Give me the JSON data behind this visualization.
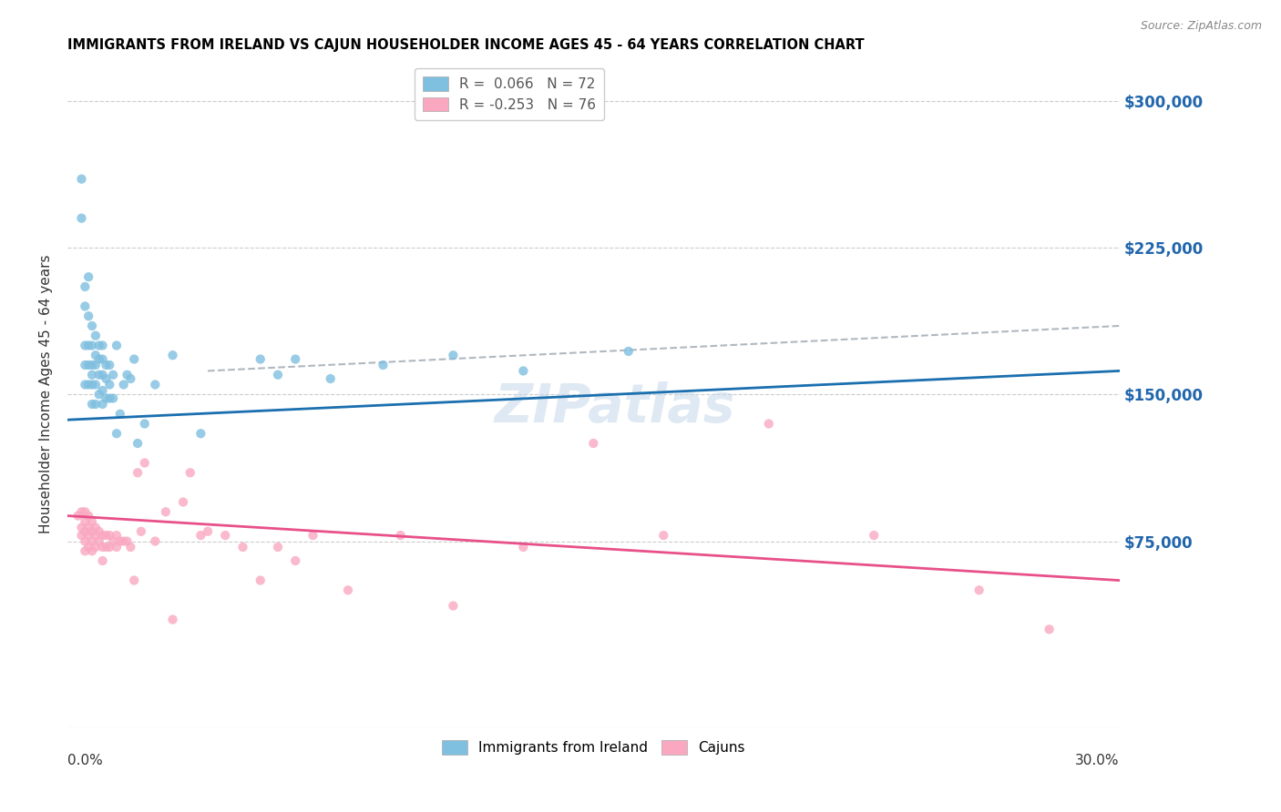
{
  "title": "IMMIGRANTS FROM IRELAND VS CAJUN HOUSEHOLDER INCOME AGES 45 - 64 YEARS CORRELATION CHART",
  "source": "Source: ZipAtlas.com",
  "ylabel": "Householder Income Ages 45 - 64 years",
  "ytick_values": [
    75000,
    150000,
    225000,
    300000
  ],
  "ylim": [
    -20000,
    320000
  ],
  "xlim": [
    0.0,
    0.3
  ],
  "ireland_color": "#7fbfdf",
  "cajun_color": "#f9a8c0",
  "ireland_line_color": "#1a6faf",
  "cajun_line_color": "#e8508a",
  "dash_line_color": "#b0b8c0",
  "watermark": "ZIPatlas",
  "ireland_points_x": [
    0.004,
    0.004,
    0.005,
    0.005,
    0.005,
    0.005,
    0.005,
    0.006,
    0.006,
    0.006,
    0.006,
    0.006,
    0.007,
    0.007,
    0.007,
    0.007,
    0.007,
    0.007,
    0.008,
    0.008,
    0.008,
    0.008,
    0.008,
    0.009,
    0.009,
    0.009,
    0.009,
    0.01,
    0.01,
    0.01,
    0.01,
    0.01,
    0.011,
    0.011,
    0.011,
    0.012,
    0.012,
    0.012,
    0.013,
    0.013,
    0.014,
    0.014,
    0.015,
    0.016,
    0.017,
    0.018,
    0.019,
    0.02,
    0.022,
    0.025,
    0.03,
    0.038,
    0.055,
    0.06,
    0.065,
    0.075,
    0.09,
    0.11,
    0.13,
    0.16
  ],
  "ireland_points_y": [
    260000,
    240000,
    205000,
    195000,
    175000,
    165000,
    155000,
    210000,
    190000,
    175000,
    165000,
    155000,
    185000,
    175000,
    165000,
    160000,
    155000,
    145000,
    180000,
    170000,
    165000,
    155000,
    145000,
    175000,
    168000,
    160000,
    150000,
    175000,
    168000,
    160000,
    152000,
    145000,
    165000,
    158000,
    148000,
    165000,
    155000,
    148000,
    160000,
    148000,
    175000,
    130000,
    140000,
    155000,
    160000,
    158000,
    168000,
    125000,
    135000,
    155000,
    170000,
    130000,
    168000,
    160000,
    168000,
    158000,
    165000,
    170000,
    162000,
    172000
  ],
  "cajun_points_x": [
    0.003,
    0.004,
    0.004,
    0.004,
    0.005,
    0.005,
    0.005,
    0.005,
    0.005,
    0.006,
    0.006,
    0.006,
    0.006,
    0.007,
    0.007,
    0.007,
    0.007,
    0.008,
    0.008,
    0.008,
    0.009,
    0.009,
    0.01,
    0.01,
    0.01,
    0.011,
    0.011,
    0.012,
    0.012,
    0.013,
    0.014,
    0.014,
    0.015,
    0.016,
    0.017,
    0.018,
    0.019,
    0.02,
    0.021,
    0.022,
    0.025,
    0.028,
    0.03,
    0.033,
    0.035,
    0.038,
    0.04,
    0.045,
    0.05,
    0.055,
    0.06,
    0.065,
    0.07,
    0.08,
    0.095,
    0.11,
    0.13,
    0.15,
    0.17,
    0.2,
    0.23,
    0.26,
    0.28
  ],
  "cajun_points_y": [
    88000,
    82000,
    90000,
    78000,
    90000,
    85000,
    80000,
    75000,
    70000,
    88000,
    82000,
    78000,
    72000,
    85000,
    80000,
    75000,
    70000,
    82000,
    78000,
    72000,
    80000,
    75000,
    78000,
    72000,
    65000,
    78000,
    72000,
    78000,
    72000,
    75000,
    78000,
    72000,
    75000,
    75000,
    75000,
    72000,
    55000,
    110000,
    80000,
    115000,
    75000,
    90000,
    35000,
    95000,
    110000,
    78000,
    80000,
    78000,
    72000,
    55000,
    72000,
    65000,
    78000,
    50000,
    78000,
    42000,
    72000,
    125000,
    78000,
    135000,
    78000,
    50000,
    30000
  ],
  "ireland_line_x0": 0.0,
  "ireland_line_y0": 137000,
  "ireland_line_x1": 0.3,
  "ireland_line_y1": 162000,
  "cajun_line_x0": 0.0,
  "cajun_line_y0": 88000,
  "cajun_line_x1": 0.3,
  "cajun_line_y1": 55000,
  "dash_line_x0": 0.04,
  "dash_line_y0": 162000,
  "dash_line_x1": 0.3,
  "dash_line_y1": 185000
}
